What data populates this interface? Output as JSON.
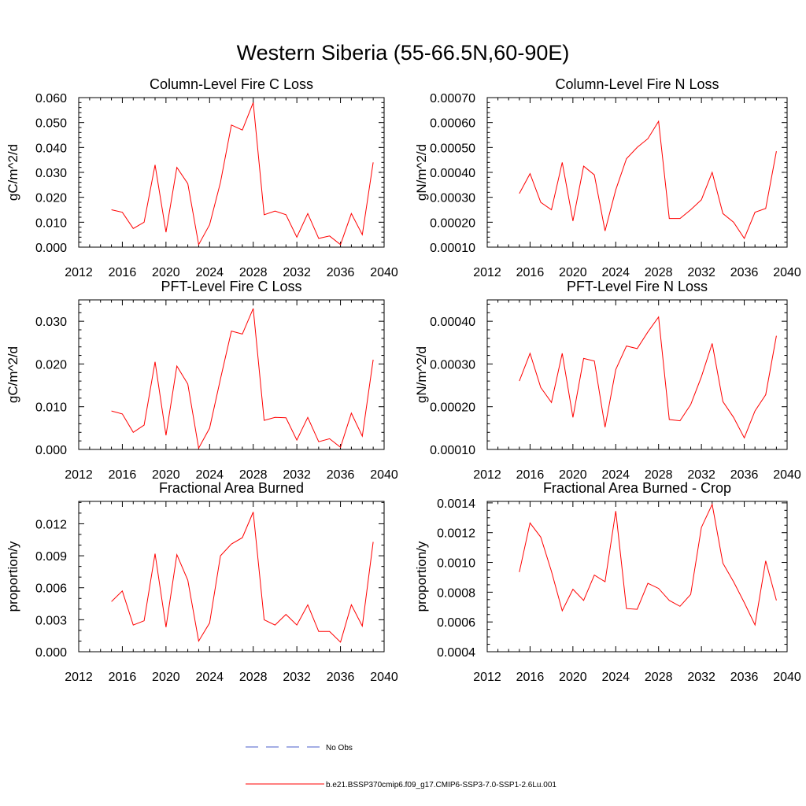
{
  "figure": {
    "title": "Western Siberia (55-66.5N,60-90E)"
  },
  "legend": [
    {
      "label": "No Obs",
      "color": "#4a5bc8",
      "style": "dashed"
    },
    {
      "label": "b.e21.BSSP370cmip6.f09_g17.CMIP6-SSP3-7.0-SSP1-2.6Lu.001",
      "color": "#ff0000",
      "style": "solid"
    }
  ],
  "chart_data": [
    {
      "type": "line",
      "title": "Column-Level Fire C Loss",
      "ylabel": "gC/m^2/d",
      "xlim": [
        2012,
        2040
      ],
      "ylim": [
        0.0,
        0.06
      ],
      "xticks": [
        2012,
        2016,
        2020,
        2024,
        2028,
        2032,
        2036,
        2040
      ],
      "yticks": [
        0.0,
        0.01,
        0.02,
        0.03,
        0.04,
        0.05,
        0.06
      ],
      "yticklabels": [
        "0.000",
        "0.010",
        "0.020",
        "0.030",
        "0.040",
        "0.050",
        "0.060"
      ],
      "yminor": 5,
      "series": [
        {
          "color": "#ff0000",
          "x": [
            2015,
            2016,
            2017,
            2018,
            2019,
            2020,
            2021,
            2022,
            2023,
            2024,
            2025,
            2026,
            2027,
            2028,
            2029,
            2030,
            2031,
            2032,
            2033,
            2034,
            2035,
            2036,
            2037,
            2038,
            2039
          ],
          "y": [
            0.015,
            0.014,
            0.0075,
            0.01,
            0.033,
            0.006,
            0.032,
            0.0255,
            0.001,
            0.009,
            0.026,
            0.049,
            0.047,
            0.058,
            0.013,
            0.0145,
            0.013,
            0.004,
            0.0135,
            0.0035,
            0.0045,
            0.001,
            0.0135,
            0.005,
            0.034
          ]
        }
      ]
    },
    {
      "type": "line",
      "title": "Column-Level Fire N Loss",
      "ylabel": "gN/m^2/d",
      "xlim": [
        2012,
        2040
      ],
      "ylim": [
        0.0001,
        0.0007
      ],
      "xticks": [
        2012,
        2016,
        2020,
        2024,
        2028,
        2032,
        2036,
        2040
      ],
      "yticks": [
        0.0001,
        0.0002,
        0.0003,
        0.0004,
        0.0005,
        0.0006,
        0.0007
      ],
      "yticklabels": [
        "0.00010",
        "0.00020",
        "0.00030",
        "0.00040",
        "0.00050",
        "0.00060",
        "0.00070"
      ],
      "yminor": 5,
      "series": [
        {
          "color": "#ff0000",
          "x": [
            2015,
            2016,
            2017,
            2018,
            2019,
            2020,
            2021,
            2022,
            2023,
            2024,
            2025,
            2026,
            2027,
            2028,
            2029,
            2030,
            2031,
            2032,
            2033,
            2034,
            2035,
            2036,
            2037,
            2038,
            2039
          ],
          "y": [
            0.000315,
            0.000395,
            0.00028,
            0.00025,
            0.00044,
            0.000205,
            0.000425,
            0.00039,
            0.000165,
            0.00033,
            0.000455,
            0.0005,
            0.000535,
            0.000605,
            0.000215,
            0.000215,
            0.00025,
            0.00029,
            0.0004,
            0.000235,
            0.0002,
            0.000135,
            0.00024,
            0.000255,
            0.000485
          ]
        }
      ]
    },
    {
      "type": "line",
      "title": "PFT-Level Fire C Loss",
      "ylabel": "gC/m^2/d",
      "xlim": [
        2012,
        2040
      ],
      "ylim": [
        0.0,
        0.035
      ],
      "xticks": [
        2012,
        2016,
        2020,
        2024,
        2028,
        2032,
        2036,
        2040
      ],
      "yticks": [
        0.0,
        0.01,
        0.02,
        0.03
      ],
      "yticklabels": [
        "0.000",
        "0.010",
        "0.020",
        "0.030"
      ],
      "yminor": 5,
      "series": [
        {
          "color": "#ff0000",
          "x": [
            2015,
            2016,
            2017,
            2018,
            2019,
            2020,
            2021,
            2022,
            2023,
            2024,
            2025,
            2026,
            2027,
            2028,
            2029,
            2030,
            2031,
            2032,
            2033,
            2034,
            2035,
            2036,
            2037,
            2038,
            2039
          ],
          "y": [
            0.009,
            0.0083,
            0.004,
            0.0057,
            0.0205,
            0.0033,
            0.0195,
            0.0153,
            0.0003,
            0.005,
            0.0165,
            0.0277,
            0.027,
            0.033,
            0.0068,
            0.0075,
            0.0074,
            0.0022,
            0.0075,
            0.0018,
            0.0025,
            0.0005,
            0.0085,
            0.0031,
            0.021
          ]
        }
      ]
    },
    {
      "type": "line",
      "title": "PFT-Level Fire N Loss",
      "ylabel": "gN/m^2/d",
      "xlim": [
        2012,
        2040
      ],
      "ylim": [
        0.0001,
        0.00045
      ],
      "xticks": [
        2012,
        2016,
        2020,
        2024,
        2028,
        2032,
        2036,
        2040
      ],
      "yticks": [
        0.0001,
        0.0002,
        0.0003,
        0.0004
      ],
      "yticklabels": [
        "0.00010",
        "0.00020",
        "0.00030",
        "0.00040"
      ],
      "yminor": 5,
      "series": [
        {
          "color": "#ff0000",
          "x": [
            2015,
            2016,
            2017,
            2018,
            2019,
            2020,
            2021,
            2022,
            2023,
            2024,
            2025,
            2026,
            2027,
            2028,
            2029,
            2030,
            2031,
            2032,
            2033,
            2034,
            2035,
            2036,
            2037,
            2038,
            2039
          ],
          "y": [
            0.00026,
            0.000325,
            0.000245,
            0.00021,
            0.000325,
            0.000175,
            0.000313,
            0.000307,
            0.000152,
            0.000287,
            0.000342,
            0.000336,
            0.000375,
            0.00041,
            0.00017,
            0.000167,
            0.000205,
            0.00027,
            0.000348,
            0.000212,
            0.000175,
            0.000127,
            0.00019,
            0.000228,
            0.000366
          ]
        }
      ]
    },
    {
      "type": "line",
      "title": "Fractional Area Burned",
      "ylabel": "proportion/y",
      "xlim": [
        2012,
        2040
      ],
      "ylim": [
        0.0,
        0.0141
      ],
      "xticks": [
        2012,
        2016,
        2020,
        2024,
        2028,
        2032,
        2036,
        2040
      ],
      "yticks": [
        0.0,
        0.003,
        0.006,
        0.009,
        0.012
      ],
      "yticklabels": [
        "0.000",
        "0.003",
        "0.006",
        "0.009",
        "0.012"
      ],
      "yminor": 3,
      "series": [
        {
          "color": "#ff0000",
          "x": [
            2015,
            2016,
            2017,
            2018,
            2019,
            2020,
            2021,
            2022,
            2023,
            2024,
            2025,
            2026,
            2027,
            2028,
            2029,
            2030,
            2031,
            2032,
            2033,
            2034,
            2035,
            2036,
            2037,
            2038,
            2039
          ],
          "y": [
            0.0047,
            0.0057,
            0.0025,
            0.0029,
            0.0092,
            0.0023,
            0.0091,
            0.0067,
            0.001,
            0.0027,
            0.009,
            0.0101,
            0.0107,
            0.0131,
            0.003,
            0.0025,
            0.0035,
            0.0025,
            0.0044,
            0.0019,
            0.0019,
            0.0009,
            0.0044,
            0.0024,
            0.0103
          ]
        }
      ]
    },
    {
      "type": "line",
      "title": "Fractional Area Burned - Crop",
      "ylabel": "proportion/y",
      "xlim": [
        2012,
        2040
      ],
      "ylim": [
        0.0004,
        0.00141
      ],
      "xticks": [
        2012,
        2016,
        2020,
        2024,
        2028,
        2032,
        2036,
        2040
      ],
      "yticks": [
        0.0004,
        0.0006,
        0.0008,
        0.001,
        0.0012,
        0.0014
      ],
      "yticklabels": [
        "0.0004",
        "0.0006",
        "0.0008",
        "0.0010",
        "0.0012",
        "0.0014"
      ],
      "yminor": 4,
      "series": [
        {
          "color": "#ff0000",
          "x": [
            2015,
            2016,
            2017,
            2018,
            2019,
            2020,
            2021,
            2022,
            2023,
            2024,
            2025,
            2026,
            2027,
            2028,
            2029,
            2030,
            2031,
            2032,
            2033,
            2034,
            2035,
            2036,
            2037,
            2038,
            2039
          ],
          "y": [
            0.000935,
            0.001265,
            0.00117,
            0.00094,
            0.000675,
            0.00082,
            0.000745,
            0.000915,
            0.00087,
            0.001345,
            0.00069,
            0.000685,
            0.00086,
            0.000825,
            0.000745,
            0.000705,
            0.000785,
            0.001235,
            0.00139,
            0.000995,
            0.00087,
            0.00073,
            0.00058,
            0.00101,
            0.000745
          ]
        }
      ]
    }
  ]
}
